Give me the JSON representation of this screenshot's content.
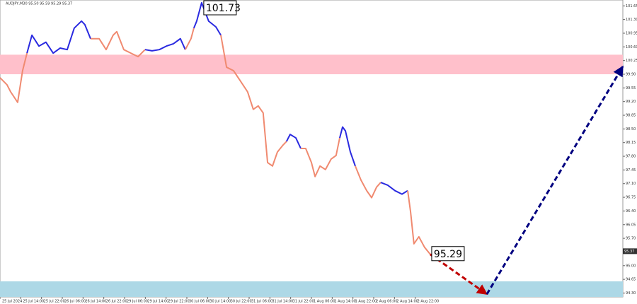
{
  "chart_data": {
    "type": "line",
    "symbol_info": "AUDJPY,M30  95.50 95.59 95.29 95.37",
    "xlim": [
      0,
      240
    ],
    "ylim": [
      94.2,
      101.8
    ],
    "xticks": [
      {
        "value": 0,
        "label": "25 Jul 2024"
      },
      {
        "value": 8,
        "label": "25 Jul 14:00"
      },
      {
        "value": 16,
        "label": "25 Jul 22:00"
      },
      {
        "value": 24,
        "label": "26 Jul 06:00"
      },
      {
        "value": 32,
        "label": "26 Jul 14:00"
      },
      {
        "value": 40,
        "label": "26 Jul 22:00"
      },
      {
        "value": 48,
        "label": "29 Jul 06:00"
      },
      {
        "value": 56,
        "label": "29 Jul 14:00"
      },
      {
        "value": 64,
        "label": "29 Jul 22:00"
      },
      {
        "value": 72,
        "label": "30 Jul 06:00"
      },
      {
        "value": 80,
        "label": "30 Jul 14:00"
      },
      {
        "value": 88,
        "label": "30 Jul 22:00"
      },
      {
        "value": 96,
        "label": "31 Jul 06:00"
      },
      {
        "value": 104,
        "label": "31 Jul 14:00"
      },
      {
        "value": 112,
        "label": "31 Jul 22:00"
      },
      {
        "value": 120,
        "label": "1 Aug 06:00"
      },
      {
        "value": 128,
        "label": "1 Aug 14:00"
      },
      {
        "value": 136,
        "label": "1 Aug 22:00"
      },
      {
        "value": 144,
        "label": "2 Aug 06:00"
      },
      {
        "value": 152,
        "label": "2 Aug 14:00"
      },
      {
        "value": 160,
        "label": "2 Aug 22:00"
      }
    ],
    "yticks": [
      {
        "value": 94.3,
        "label": "94.30"
      },
      94.65,
      {
        "value": 95,
        "label": "95.00"
      },
      95.35,
      {
        "value": 95.7,
        "label": "95.70"
      },
      96.05,
      {
        "value": 96.4,
        "label": "96.40"
      },
      96.75,
      {
        "value": 97.1,
        "label": "97.10"
      },
      97.45,
      {
        "value": 97.8,
        "label": "97.80"
      },
      98.15,
      {
        "value": 98.5,
        "label": "98.50"
      },
      98.85,
      {
        "value": 99.2,
        "label": "99.20"
      },
      99.55,
      {
        "value": 99.9,
        "label": "99.90"
      },
      100.25,
      {
        "value": 100.6,
        "label": "100.60"
      },
      100.95,
      {
        "value": 101.3,
        "label": "101.30"
      },
      101.65
    ],
    "zones": [
      {
        "color": "#ffc0cb",
        "ylim": [
          99.9,
          100.4
        ]
      },
      {
        "color": "#add8e6",
        "ylim": [
          94.2,
          94.6
        ]
      }
    ],
    "series": [
      {
        "color": "#f08a70",
        "x": [
          0,
          2.7,
          4.1,
          6.8,
          8.7,
          10.4
        ],
        "values": [
          99.81,
          99.63,
          99.45,
          99.18,
          99.99,
          100.44
        ]
      },
      {
        "color": "#2a2ae0",
        "x": [
          10.4,
          12.3,
          15,
          17.7,
          20.5,
          23.2,
          25.9,
          28.6,
          31.4,
          32.7,
          34.9
        ],
        "values": [
          100.44,
          100.9,
          100.62,
          100.72,
          100.44,
          100.57,
          100.53,
          101.08,
          101.26,
          101.17,
          100.81
        ]
      },
      {
        "color": "#f08a70",
        "x": [
          34.9,
          38.2,
          40.9,
          43.6,
          45,
          47.7,
          50.4,
          53.2,
          55.9
        ],
        "values": [
          100.81,
          100.81,
          100.53,
          100.9,
          100.99,
          100.53,
          100.44,
          100.35,
          100.53
        ]
      },
      {
        "color": "#2a2ae0",
        "x": [
          55.9,
          58.6,
          61.4,
          64.1,
          66.8,
          69.5,
          71.4
        ],
        "values": [
          100.53,
          100.5,
          100.53,
          100.62,
          100.68,
          100.81,
          100.53
        ]
      },
      {
        "color": "#f08a70",
        "x": [
          71.4,
          73.6,
          74.7
        ],
        "values": [
          100.53,
          100.81,
          101.08
        ]
      },
      {
        "color": "#2a2ae0",
        "x": [
          74.7,
          75.8,
          77.7,
          80.4,
          83.2,
          85.1
        ],
        "values": [
          101.08,
          101.26,
          101.73,
          101.26,
          101.11,
          100.9
        ]
      },
      {
        "color": "#f08a70",
        "x": [
          85.1,
          87.3,
          90,
          92.7,
          95.4,
          97.6,
          99.5,
          101.4,
          103.1,
          105,
          106.9,
          109.1,
          110.4
        ],
        "values": [
          100.9,
          100.08,
          99.99,
          99.72,
          99.45,
          99.0,
          99.09,
          98.91,
          97.64,
          97.55,
          97.91,
          98.09,
          98.18
        ]
      },
      {
        "color": "#2a2ae0",
        "x": [
          110.4,
          111.8,
          114,
          115.9
        ],
        "values": [
          98.18,
          98.36,
          98.27,
          98.0
        ]
      },
      {
        "color": "#f08a70",
        "x": [
          115.9,
          117.8,
          120,
          121.4,
          123.3,
          125.4,
          127.6,
          129.5,
          130.9
        ],
        "values": [
          98.0,
          98.0,
          97.64,
          97.28,
          97.55,
          97.46,
          97.73,
          97.82,
          98.27
        ]
      },
      {
        "color": "#2a2ae0",
        "x": [
          130.9,
          132,
          133.1,
          135,
          136.9
        ],
        "values": [
          98.27,
          98.55,
          98.45,
          97.91,
          97.55
        ]
      },
      {
        "color": "#f08a70",
        "x": [
          136.9,
          139.1,
          141.3,
          143.2,
          145.1,
          146.7
        ],
        "values": [
          97.55,
          97.19,
          96.92,
          96.74,
          97.01,
          97.13
        ]
      },
      {
        "color": "#2a2ae0",
        "x": [
          146.7,
          149.4,
          152.2,
          154.9,
          157.1
        ],
        "values": [
          97.13,
          97.06,
          96.92,
          96.83,
          96.92
        ]
      },
      {
        "color": "#f08a70",
        "x": [
          157.1,
          158.2,
          159.5,
          161.4,
          163.6,
          165.8
        ],
        "values": [
          96.92,
          96.38,
          95.56,
          95.74,
          95.47,
          95.29
        ]
      }
    ],
    "arrows": [
      {
        "color": "#c00000",
        "x": [
          165.8,
          187.6
        ],
        "values": [
          95.29,
          94.27
        ]
      },
      {
        "color": "#000080",
        "x": [
          187.6,
          240
        ],
        "values": [
          94.27,
          100.1
        ]
      }
    ],
    "annotations": [
      {
        "x": 77.7,
        "value": 101.73
      },
      {
        "x": 165.8,
        "value": 95.29
      }
    ],
    "current_price": 95.37
  }
}
